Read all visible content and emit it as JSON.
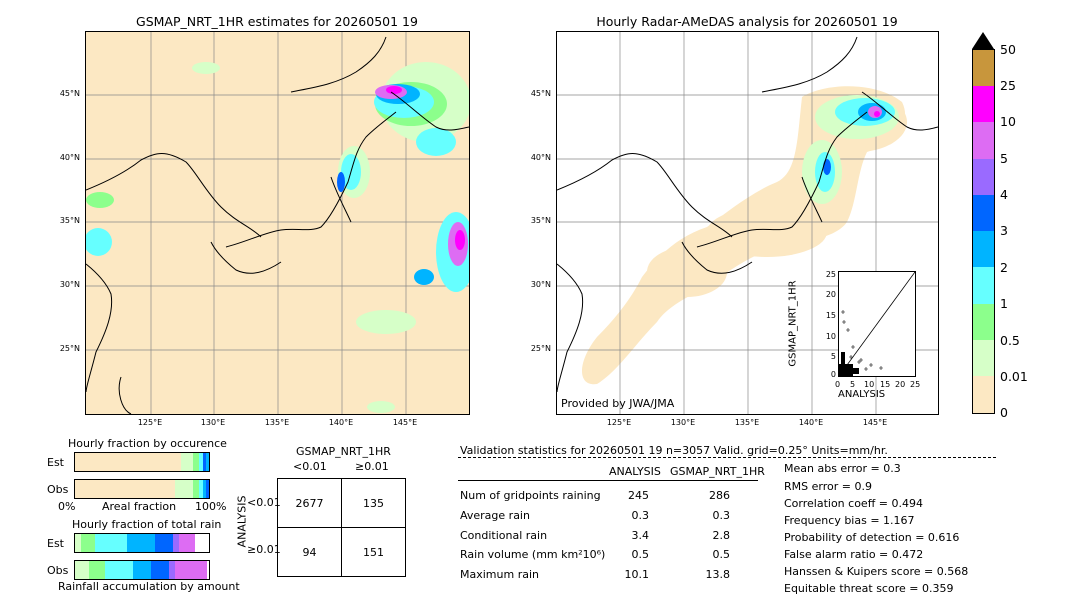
{
  "left_map": {
    "title": "GSMAP_NRT_1HR estimates for 20260501 19",
    "lat_ticks": [
      "45°N",
      "40°N",
      "35°N",
      "30°N",
      "25°N"
    ],
    "lon_ticks": [
      "125°E",
      "130°E",
      "135°E",
      "140°E",
      "145°E"
    ]
  },
  "right_map": {
    "title": "Hourly Radar-AMeDAS analysis for 20260501 19",
    "lat_ticks": [
      "45°N",
      "40°N",
      "35°N",
      "30°N",
      "25°N"
    ],
    "lon_ticks": [
      "125°E",
      "130°E",
      "135°E",
      "140°E",
      "145°E"
    ],
    "credit": "Provided by JWA/JMA"
  },
  "scatter": {
    "xlabel": "ANALYSIS",
    "ylabel": "GSMAP_NRT_1HR",
    "ticks": [
      "0",
      "5",
      "10",
      "15",
      "20",
      "25"
    ]
  },
  "colorbar": {
    "labels": [
      "50",
      "25",
      "10",
      "5",
      "4",
      "3",
      "2",
      "1",
      "0.5",
      "0.01",
      "0"
    ],
    "colors": [
      "#c8963c",
      "#ff00ff",
      "#dd6cf3",
      "#9a6aff",
      "#0066ff",
      "#00b4ff",
      "#66ffff",
      "#8cff8c",
      "#d6ffc8",
      "#fce8c3"
    ]
  },
  "occurrence": {
    "title": "Hourly fraction by occurence",
    "row_est": "Est",
    "row_obs": "Obs",
    "axis_left": "0%",
    "axis_mid": "Areal fraction",
    "axis_right": "100%"
  },
  "total_rain": {
    "title": "Hourly fraction of total rain",
    "row_est": "Est",
    "row_obs": "Obs",
    "caption": "Rainfall accumulation by amount"
  },
  "contingency": {
    "title": "GSMAP_NRT_1HR",
    "col1": "<0.01",
    "col2": "≥0.01",
    "side": "ANALYSIS",
    "row1": "<0.01",
    "row2": "≥0.01",
    "cells": [
      "2677",
      "135",
      "94",
      "151"
    ]
  },
  "validation": {
    "header": "Validation statistics for 20260501 19  n=3057 Valid. grid=0.25° Units=mm/hr.",
    "col_analysis": "ANALYSIS",
    "col_gsmap": "GSMAP_NRT_1HR",
    "rows": [
      {
        "label": "Num of gridpoints raining",
        "a": "245",
        "g": "286"
      },
      {
        "label": "Average rain",
        "a": "0.3",
        "g": "0.3"
      },
      {
        "label": "Conditional rain",
        "a": "3.4",
        "g": "2.8"
      },
      {
        "label": "Rain volume (mm km²10⁶)",
        "a": "0.5",
        "g": "0.5"
      },
      {
        "label": "Maximum rain",
        "a": "10.1",
        "g": "13.8"
      }
    ],
    "scores": [
      "Mean abs error =    0.3",
      "RMS error =    0.9",
      "Correlation coeff =  0.494",
      "Frequency bias =  1.167",
      "Probability of detection =  0.616",
      "False alarm ratio =  0.472",
      "Hanssen & Kuipers score =  0.568",
      "Equitable threat score =  0.359"
    ]
  }
}
